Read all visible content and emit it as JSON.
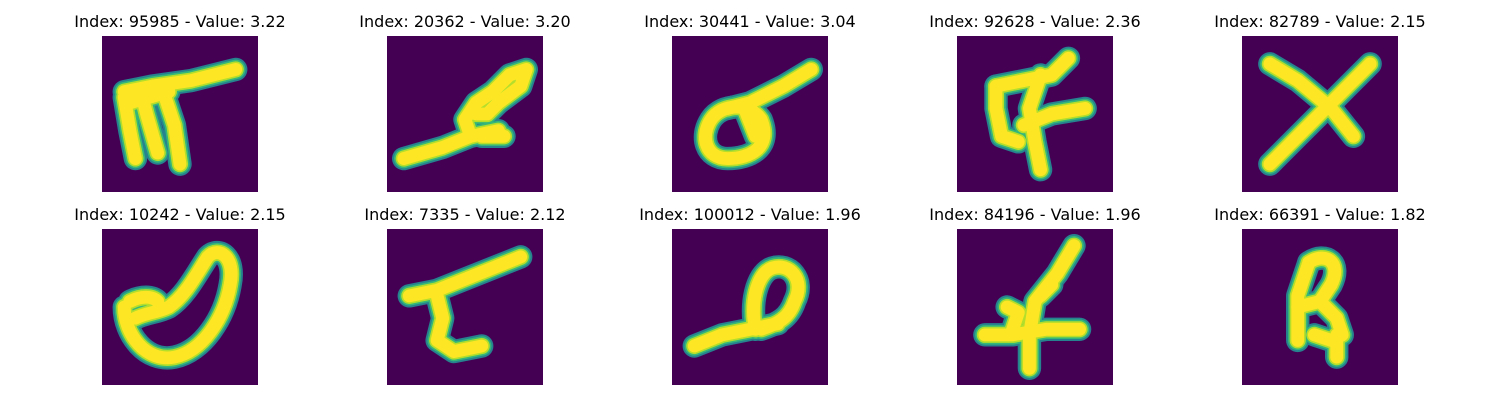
{
  "colors": {
    "background": "#440154",
    "stroke_core": "#fde725",
    "stroke_edge_1": "#b5de2b",
    "stroke_edge_2": "#35b779",
    "stroke_edge_3": "#26828e"
  },
  "colormap": "viridis",
  "panels": [
    {
      "title": "Index: 95985 - Value: 3.22"
    },
    {
      "title": "Index: 20362 - Value: 3.20"
    },
    {
      "title": "Index: 30441 - Value: 3.04"
    },
    {
      "title": "Index: 92628 - Value: 2.36"
    },
    {
      "title": "Index: 82789 - Value: 2.15"
    },
    {
      "title": "Index: 10242 - Value: 2.15"
    },
    {
      "title": "Index: 7335 - Value: 2.12"
    },
    {
      "title": "Index: 100012 - Value: 1.96"
    },
    {
      "title": "Index: 84196 - Value: 1.96"
    },
    {
      "title": "Index: 66391 - Value: 1.82"
    }
  ]
}
